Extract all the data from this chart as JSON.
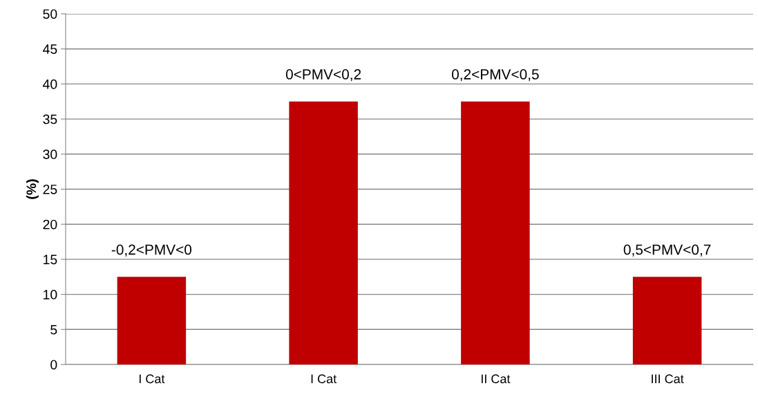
{
  "chart_data": {
    "type": "bar",
    "ylabel": "(%)",
    "categories": [
      "I Cat",
      "I Cat",
      "II Cat",
      "III Cat"
    ],
    "values": [
      12.5,
      37.5,
      37.5,
      12.5
    ],
    "annotations": [
      "-0,2<PMV<0",
      "0<PMV<0,2",
      "0,2<PMV<0,5",
      "0,5<PMV<0,7"
    ],
    "color": "#c00000",
    "ylim": [
      0,
      50
    ],
    "yticks": [
      0,
      5,
      10,
      15,
      20,
      25,
      30,
      35,
      40,
      45,
      50
    ],
    "grid": "y"
  }
}
